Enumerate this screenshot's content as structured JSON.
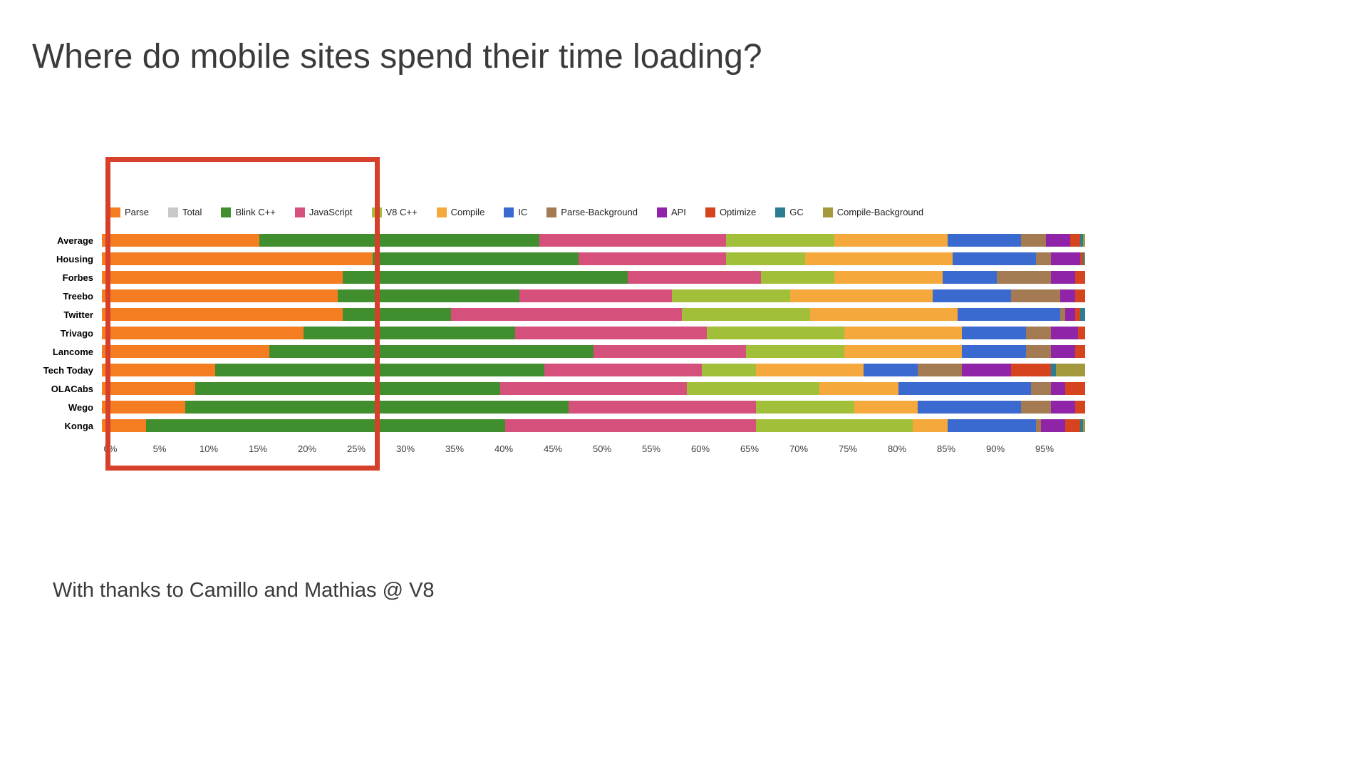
{
  "page": {
    "title": "Where do mobile sites spend their time loading?",
    "footer": "With thanks to Camillo and Mathias @ V8"
  },
  "annotation": {
    "highlight_box_color": "#d6402b",
    "highlight_range_percent": [
      0,
      27.5
    ]
  },
  "chart_data": {
    "type": "bar",
    "orientation": "horizontal",
    "stacked": true,
    "title": "Where do mobile sites spend their time loading?",
    "xlabel": "",
    "ylabel": "",
    "xlim": [
      0,
      100
    ],
    "grid": false,
    "legend_position": "top",
    "x_ticks": [
      "0%",
      "5%",
      "10%",
      "15%",
      "20%",
      "25%",
      "30%",
      "35%",
      "40%",
      "45%",
      "50%",
      "55%",
      "60%",
      "65%",
      "70%",
      "75%",
      "80%",
      "85%",
      "90%",
      "95%"
    ],
    "categories": [
      "Average",
      "Housing",
      "Forbes",
      "Treebo",
      "Twitter",
      "Trivago",
      "Lancome",
      "Tech Today",
      "OLACabs",
      "Wego",
      "Konga"
    ],
    "legend": [
      {
        "label": "Parse",
        "color": "#f47d21"
      },
      {
        "label": "Total",
        "color": "#c9c9c9"
      },
      {
        "label": "Blink C++",
        "color": "#418e2e"
      },
      {
        "label": "JavaScript",
        "color": "#d5517c"
      },
      {
        "label": "V8 C++",
        "color": "#a2bf3a"
      },
      {
        "label": "Compile",
        "color": "#f5a93c"
      },
      {
        "label": "IC",
        "color": "#3a6ad0"
      },
      {
        "label": "Parse-Background",
        "color": "#a47a52"
      },
      {
        "label": "API",
        "color": "#8f24a8"
      },
      {
        "label": "Optimize",
        "color": "#d5431f"
      },
      {
        "label": "GC",
        "color": "#2c7d91"
      },
      {
        "label": "Compile-Background",
        "color": "#a3983c"
      }
    ],
    "series": [
      {
        "name": "Parse",
        "color": "#f47d21",
        "values": [
          16,
          27.5,
          24.5,
          24,
          24.5,
          20.5,
          17,
          11.5,
          9.5,
          8.5,
          4.5
        ]
      },
      {
        "name": "Blink C++",
        "color": "#418e2e",
        "values": [
          28.5,
          21,
          29,
          18.5,
          11,
          21.5,
          33,
          33.5,
          31,
          39,
          36.5
        ]
      },
      {
        "name": "JavaScript",
        "color": "#d5517c",
        "values": [
          19,
          15,
          13.5,
          15.5,
          23.5,
          19.5,
          15.5,
          16,
          19,
          19,
          25.5
        ]
      },
      {
        "name": "V8 C++",
        "color": "#a2bf3a",
        "values": [
          11,
          8,
          7.5,
          12,
          13,
          14,
          10,
          5.5,
          13.5,
          10,
          16
        ]
      },
      {
        "name": "Compile",
        "color": "#f5a93c",
        "values": [
          11.5,
          15,
          11,
          14.5,
          15,
          12,
          12,
          11,
          8,
          6.5,
          3.5
        ]
      },
      {
        "name": "IC",
        "color": "#3a6ad0",
        "values": [
          7.5,
          8.5,
          5.5,
          8,
          10.5,
          6.5,
          6.5,
          5.5,
          13.5,
          10.5,
          9
        ]
      },
      {
        "name": "Parse-Background",
        "color": "#a47a52",
        "values": [
          2.5,
          1.5,
          5.5,
          5,
          0.5,
          2.5,
          2.5,
          4.5,
          2,
          3,
          0.5
        ]
      },
      {
        "name": "API",
        "color": "#8f24a8",
        "values": [
          2.5,
          3,
          2.5,
          1.5,
          1,
          2.8,
          2.5,
          5,
          1.5,
          2.5,
          2.5
        ]
      },
      {
        "name": "Optimize",
        "color": "#d5431f",
        "values": [
          1,
          0.3,
          1,
          1,
          0.5,
          0.7,
          1,
          4,
          2,
          1,
          1.5
        ]
      },
      {
        "name": "GC",
        "color": "#2c7d91",
        "values": [
          0.3,
          0.1,
          0,
          0,
          0.5,
          0,
          0,
          0.5,
          0,
          0,
          0.3
        ]
      },
      {
        "name": "Compile-Background",
        "color": "#a3983c",
        "values": [
          0.2,
          0.1,
          0,
          0,
          0,
          0,
          0,
          3,
          0,
          0,
          0.2
        ]
      }
    ]
  }
}
